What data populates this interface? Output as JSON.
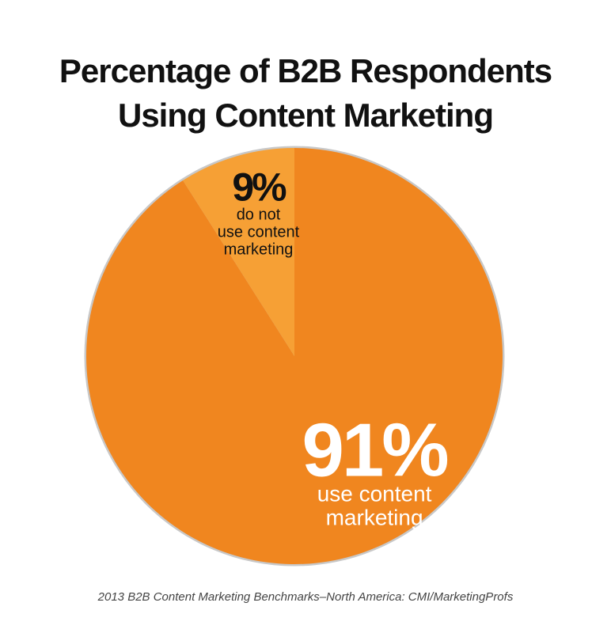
{
  "title_lines": [
    "Percentage of B2B Respondents",
    "Using Content Marketing"
  ],
  "source": "2013 B2B Content Marketing Benchmarks–North America: CMI/MarketingProfs",
  "colors": {
    "major_slice": "#f0861f",
    "minor_slice": "#f6a035",
    "ring": "#c8c8c8",
    "major_label": "#ffffff",
    "minor_label": "#111111"
  },
  "chart_data": {
    "type": "pie",
    "title": "Percentage of B2B Respondents Using Content Marketing",
    "slices": [
      {
        "label": "use content marketing",
        "label_lines": [
          "use content",
          "marketing"
        ],
        "value": 91,
        "value_text": "91%"
      },
      {
        "label": "do not use content marketing",
        "label_lines": [
          "do not",
          "use content",
          "marketing"
        ],
        "value": 9,
        "value_text": "9%"
      }
    ]
  }
}
